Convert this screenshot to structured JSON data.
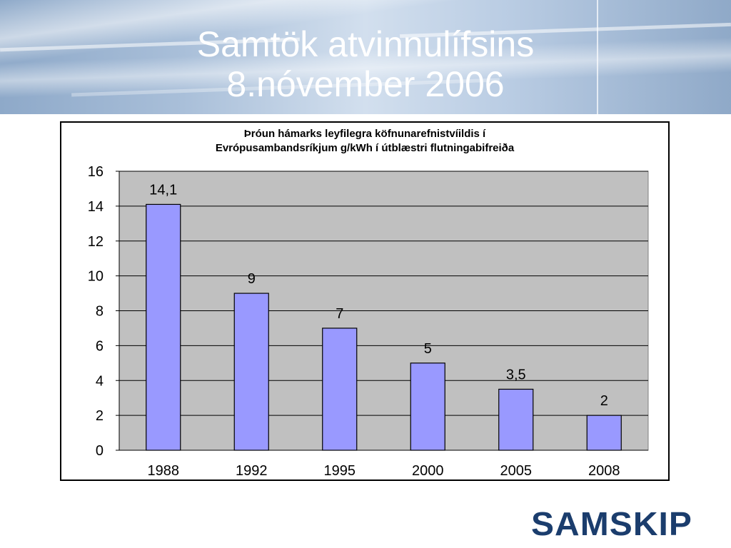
{
  "slide": {
    "title_line1": "Samtök atvinnulífsins",
    "title_line2": "8.nóvember 2006",
    "logo_text": "SAMSKIP",
    "colors": {
      "bar": "#9999ff",
      "plot_bg": "#c0c0c0",
      "logo": "#1b3d6d"
    }
  },
  "chart_data": {
    "type": "bar",
    "title_line1": "Þróun hámarks leyfilegra köfnunarefnistvíildis í",
    "title_line2": "Evrópusambandsríkjum g/kWh í útblæstri flutningabifreiða",
    "categories": [
      "1988",
      "1992",
      "1995",
      "2000",
      "2005",
      "2008"
    ],
    "values": [
      14.1,
      9,
      7,
      5,
      3.5,
      2
    ],
    "data_labels": [
      "14,1",
      "9",
      "7",
      "5",
      "3,5",
      "2"
    ],
    "ylim": [
      0,
      16
    ],
    "yticks": [
      0,
      2,
      4,
      6,
      8,
      10,
      12,
      14,
      16
    ],
    "grid": true,
    "legend": "none"
  }
}
